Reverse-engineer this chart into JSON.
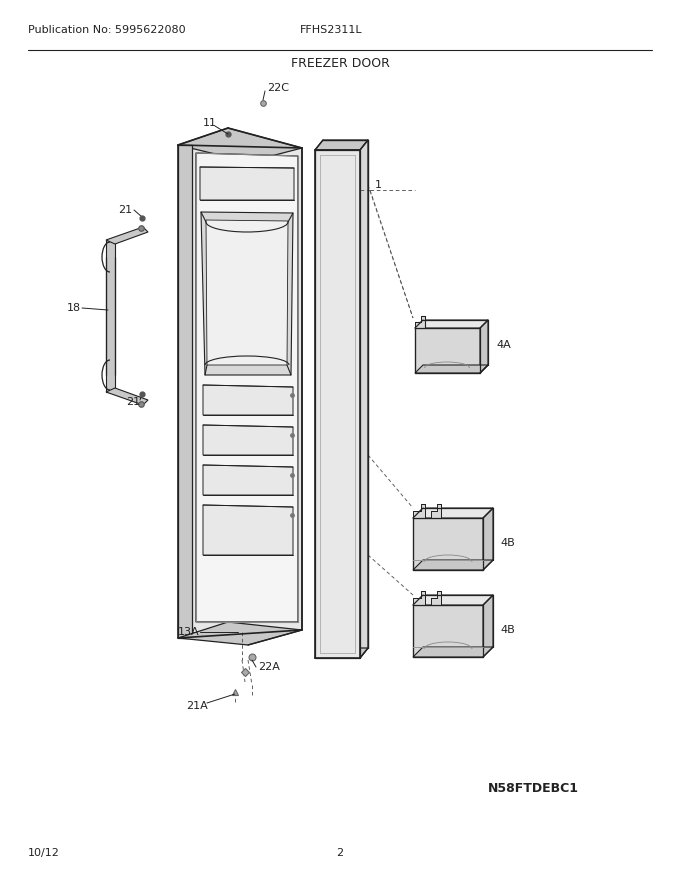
{
  "title": "FREEZER DOOR",
  "pub_no": "Publication No: 5995622080",
  "model": "FFHS2311L",
  "date": "10/12",
  "page": "2",
  "diagram_id": "N58FTDEBC1",
  "bg_color": "#ffffff",
  "lc": "#222222",
  "gray1": "#c8c8c8",
  "gray2": "#d8d8d8",
  "gray3": "#e8e8e8",
  "gray4": "#f0f0f0"
}
